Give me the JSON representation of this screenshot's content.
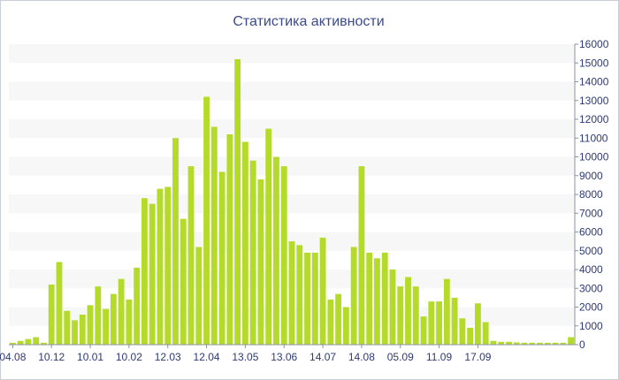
{
  "chart_data": {
    "type": "bar",
    "title": "Статистика активности",
    "xlabel": "",
    "ylabel": "",
    "ylim": [
      0,
      16000
    ],
    "yticks": [
      0,
      1000,
      2000,
      3000,
      4000,
      5000,
      6000,
      7000,
      8000,
      9000,
      10000,
      11000,
      12000,
      13000,
      14000,
      15000,
      16000
    ],
    "y_axis_position": "right",
    "grid": "horizontal bands",
    "bar_color": "#b5db2a",
    "band_color": "#f7f7f7",
    "xtick_labels": [
      "04.08",
      "10.12",
      "10.01",
      "10.02",
      "12.03",
      "12.04",
      "13.05",
      "13.06",
      "14.07",
      "14.08",
      "05.09",
      "11.09",
      "17.09"
    ],
    "xtick_bar_index": [
      0,
      5,
      10,
      15,
      20,
      25,
      30,
      35,
      40,
      45,
      50,
      55,
      60
    ],
    "values": [
      100,
      200,
      300,
      400,
      100,
      3200,
      4400,
      1800,
      1300,
      1600,
      2100,
      3100,
      1900,
      2700,
      3500,
      2400,
      4100,
      7800,
      7500,
      8300,
      8400,
      11000,
      6700,
      9500,
      5200,
      13200,
      11600,
      9200,
      11200,
      15200,
      10800,
      9800,
      8800,
      11500,
      10000,
      9500,
      5500,
      5300,
      4900,
      4900,
      5700,
      2400,
      2700,
      2000,
      5200,
      9500,
      4900,
      4600,
      4900,
      4000,
      3100,
      3600,
      3100,
      1500,
      2300,
      2300,
      3500,
      2500,
      1400,
      900,
      2200,
      1200,
      200,
      150,
      150,
      120,
      100,
      100,
      100,
      100,
      100,
      100,
      400
    ]
  }
}
